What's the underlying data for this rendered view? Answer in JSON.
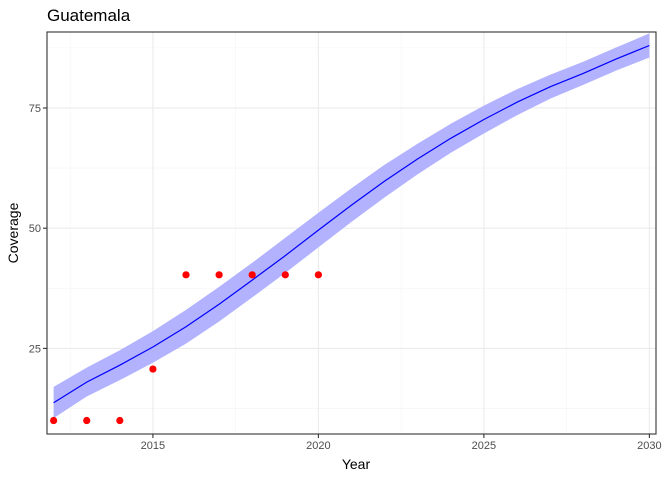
{
  "chart_data": {
    "type": "line",
    "title": "Guatemala",
    "xlabel": "Year",
    "ylabel": "Coverage",
    "xlim": [
      2011.8,
      2030.2
    ],
    "ylim": [
      7.2,
      90.8
    ],
    "xticks": [
      2015,
      2020,
      2025,
      2030
    ],
    "xtick_labels": [
      "2015",
      "2020",
      "2025",
      "2030"
    ],
    "yticks": [
      25,
      50,
      75
    ],
    "ytick_labels": [
      "25",
      "50",
      "75"
    ],
    "grid": true,
    "legend": "none",
    "colors": {
      "line": "#0000ff",
      "band": "#b2b2ff",
      "points": "#ff0000",
      "grid_major": "#ebebeb",
      "grid_minor": "#f5f5f5",
      "panel_border": "#333333"
    },
    "series": [
      {
        "type": "line",
        "x": [
          2012,
          2013,
          2014,
          2015,
          2016,
          2017,
          2018,
          2019,
          2020,
          2021,
          2022,
          2023,
          2024,
          2025,
          2026,
          2027,
          2028,
          2029,
          2030
        ],
        "y": [
          13.7,
          18.0,
          21.5,
          25.3,
          29.5,
          34.2,
          39.2,
          44.3,
          49.6,
          54.8,
          59.8,
          64.4,
          68.7,
          72.6,
          76.2,
          79.4,
          82.2,
          85.2,
          88.0
        ]
      },
      {
        "type": "ribbon",
        "x": [
          2012,
          2013,
          2014,
          2015,
          2016,
          2017,
          2018,
          2019,
          2020,
          2021,
          2022,
          2023,
          2024,
          2025,
          2026,
          2027,
          2028,
          2029,
          2030
        ],
        "upper": [
          17.0,
          21.0,
          24.6,
          28.6,
          33.0,
          37.8,
          42.8,
          48.0,
          53.2,
          58.3,
          63.2,
          67.6,
          71.7,
          75.5,
          78.9,
          81.9,
          84.6,
          87.6,
          90.5
        ],
        "lower": [
          10.5,
          15.0,
          18.4,
          22.0,
          26.0,
          30.6,
          35.6,
          40.7,
          46.0,
          51.3,
          56.4,
          61.2,
          65.7,
          69.7,
          73.5,
          76.9,
          79.8,
          82.8,
          85.5
        ]
      },
      {
        "type": "scatter",
        "x": [
          2012,
          2013,
          2014,
          2015,
          2016,
          2017,
          2018,
          2019,
          2020
        ],
        "y": [
          10,
          10,
          10,
          20.7,
          40.3,
          40.3,
          40.3,
          40.3,
          40.3
        ]
      }
    ]
  }
}
